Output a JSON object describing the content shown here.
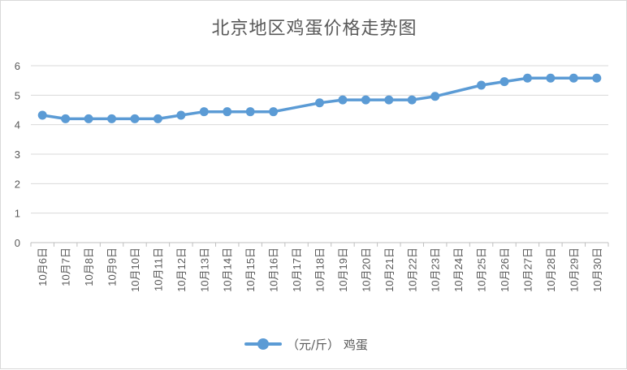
{
  "chart_data": {
    "type": "line",
    "title": "北京地区鸡蛋价格走势图",
    "categories": [
      "10月6日",
      "10月7日",
      "10月8日",
      "10月9日",
      "10月10日",
      "10月11日",
      "10月12日",
      "10月13日",
      "10月14日",
      "10月15日",
      "10月16日",
      "10月17日",
      "10月18日",
      "10月19日",
      "10月20日",
      "10月21日",
      "10月22日",
      "10月23日",
      "10月24日",
      "10月25日",
      "10月26日",
      "10月27日",
      "10月28日",
      "10月29日",
      "10月30日"
    ],
    "series": [
      {
        "name": "（元/斤） 鸡蛋",
        "color": "#5b9bd5",
        "values": [
          4.32,
          4.2,
          4.2,
          4.2,
          4.2,
          4.2,
          4.32,
          4.44,
          4.44,
          4.44,
          4.44,
          null,
          4.74,
          4.84,
          4.84,
          4.84,
          4.84,
          4.96,
          null,
          5.34,
          5.46,
          5.58,
          5.58,
          5.58,
          5.58
        ]
      }
    ],
    "yticks": [
      "0",
      "1",
      "2",
      "3",
      "4",
      "5",
      "6"
    ],
    "ylim": [
      0,
      6
    ],
    "xlabel": "",
    "ylabel": "",
    "grid": true,
    "legend": "bottom"
  }
}
